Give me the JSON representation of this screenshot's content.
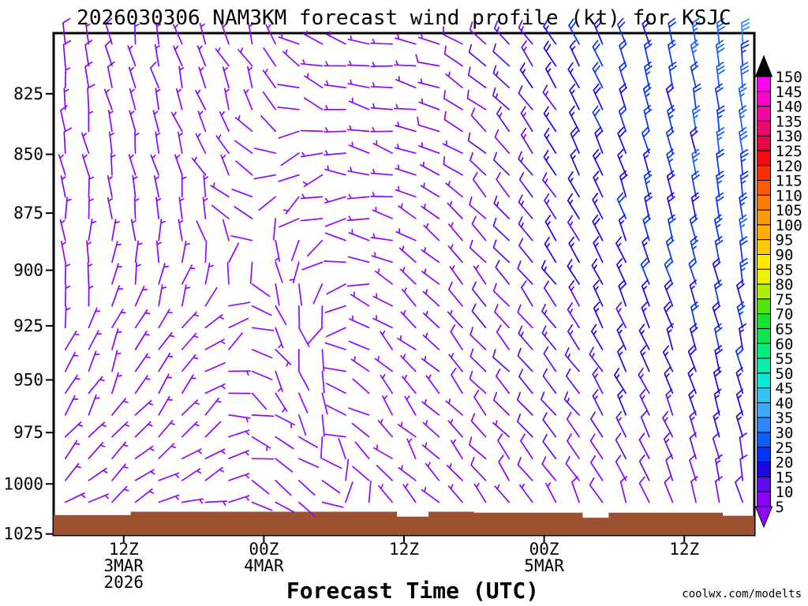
{
  "watermark": {
    "text": "coolwx.com/modelts",
    "color": "#F08080"
  },
  "chart_data": {
    "type": "wind-barb-time-height",
    "title": "2026030306 NAM3KM forecast wind profile (kt) for KSJC",
    "xlabel": "Forecast Time (UTC)",
    "units": "kt",
    "station": "KSJC",
    "model": "NAM3KM",
    "run": "2026030306",
    "x_axis": {
      "span_hours": 60,
      "ticks": [
        {
          "hour": 6,
          "lines": [
            "12Z",
            "3MAR",
            "2026"
          ]
        },
        {
          "hour": 18,
          "lines": [
            "00Z",
            "4MAR"
          ]
        },
        {
          "hour": 30,
          "lines": [
            "12Z"
          ]
        },
        {
          "hour": 42,
          "lines": [
            "00Z",
            "5MAR"
          ]
        },
        {
          "hour": 54,
          "lines": [
            "12Z"
          ]
        }
      ]
    },
    "y_axis": {
      "scale": "log-pressure",
      "top_hpa": 800.7,
      "bottom_hpa": 1025.5,
      "ticks": [
        825,
        850,
        875,
        900,
        925,
        950,
        975,
        1000,
        1025
      ]
    },
    "colorbar": {
      "levels": [
        5,
        10,
        15,
        20,
        25,
        30,
        35,
        40,
        45,
        50,
        55,
        60,
        65,
        70,
        75,
        80,
        85,
        90,
        95,
        100,
        105,
        110,
        115,
        120,
        125,
        130,
        135,
        140,
        145,
        150
      ],
      "band_colors": [
        "#8A04FA",
        "#5F0AF0",
        "#1E06E6",
        "#0433F2",
        "#105CFF",
        "#2B87FF",
        "#3DA5FC",
        "#33C3F0",
        "#0BE6D6",
        "#06F0AC",
        "#04EC7C",
        "#06E652",
        "#14E42A",
        "#52E40A",
        "#AEEE04",
        "#EEF202",
        "#FFE802",
        "#FFC904",
        "#FFAE06",
        "#FF9804",
        "#FF7D04",
        "#FF5A04",
        "#FA2E04",
        "#F00A14",
        "#E60644",
        "#EC0672",
        "#F206A0",
        "#F806CC",
        "#FE04F2"
      ],
      "under_color": "#9208FF",
      "over_color": "#000000"
    },
    "terrain": {
      "color": "#9C5130",
      "segments": [
        [
          0.0,
          0.11,
          1015.5
        ],
        [
          0.11,
          0.49,
          1013.8
        ],
        [
          0.49,
          0.535,
          1016.3
        ],
        [
          0.535,
          0.6,
          1013.8
        ],
        [
          0.6,
          0.755,
          1014.3
        ],
        [
          0.755,
          0.792,
          1016.8
        ],
        [
          0.792,
          0.955,
          1014.3
        ],
        [
          0.955,
          1.0,
          1015.8
        ]
      ]
    },
    "wind_field": {
      "comment_units": "dir_speed[level][time] = [direction wind is from (deg), speed (kt)]",
      "time_fractions": [
        0.0,
        0.17,
        0.33,
        0.5,
        0.6,
        0.73,
        0.85,
        1.0
      ],
      "pressure_levels": [
        805,
        860,
        910,
        960,
        1012
      ],
      "dir_speed": [
        [
          [
            355,
            8
          ],
          [
            348,
            7
          ],
          [
            320,
            3
          ],
          [
            275,
            6
          ],
          [
            300,
            9
          ],
          [
            330,
            18
          ],
          [
            345,
            22
          ],
          [
            355,
            28
          ]
        ],
        [
          [
            350,
            7
          ],
          [
            344,
            6
          ],
          [
            220,
            2
          ],
          [
            285,
            5
          ],
          [
            310,
            8
          ],
          [
            330,
            16
          ],
          [
            345,
            20
          ],
          [
            352,
            25
          ]
        ],
        [
          [
            8,
            6
          ],
          [
            15,
            5
          ],
          [
            175,
            3
          ],
          [
            305,
            4
          ],
          [
            315,
            8
          ],
          [
            325,
            15
          ],
          [
            340,
            18
          ],
          [
            350,
            22
          ]
        ],
        [
          [
            25,
            6
          ],
          [
            40,
            5
          ],
          [
            150,
            3
          ],
          [
            315,
            4
          ],
          [
            320,
            9
          ],
          [
            320,
            12
          ],
          [
            335,
            15
          ],
          [
            345,
            18
          ]
        ],
        [
          [
            55,
            5
          ],
          [
            70,
            4
          ],
          [
            120,
            2
          ],
          [
            330,
            3
          ],
          [
            315,
            6
          ],
          [
            330,
            8
          ],
          [
            340,
            8
          ],
          [
            350,
            10
          ]
        ]
      ],
      "barb_grid": {
        "columns": 30,
        "rows": 23
      }
    }
  }
}
